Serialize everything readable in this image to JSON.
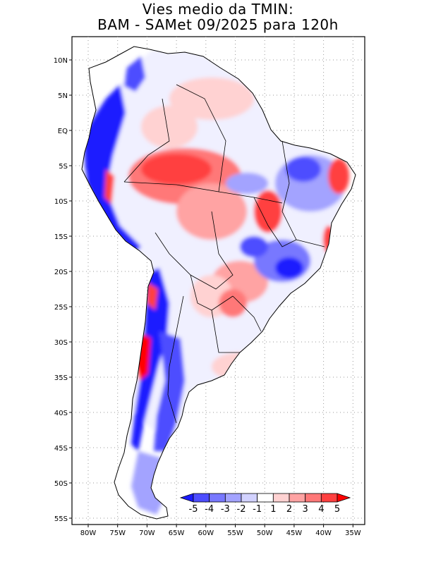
{
  "title": {
    "line1": "Vies medio da TMIN:",
    "line2": "BAM - SAMet 09/2025  para 120h"
  },
  "lat_ticks": [
    "10N",
    "5N",
    "EQ",
    "5S",
    "10S",
    "15S",
    "20S",
    "25S",
    "30S",
    "35S",
    "40S",
    "45S",
    "50S",
    "55S"
  ],
  "lon_ticks": [
    "80W",
    "75W",
    "70W",
    "65W",
    "60W",
    "55W",
    "50W",
    "45W",
    "40W",
    "35W"
  ],
  "colorbar": {
    "labels": [
      "-5",
      "-4",
      "-3",
      "-2",
      "-1",
      "1",
      "2",
      "3",
      "4",
      "5"
    ],
    "colors": [
      "#1a1aff",
      "#4d4dff",
      "#7878ff",
      "#a3a3ff",
      "#d2d2ff",
      "#ffffff",
      "#ffd2d2",
      "#ffa3a3",
      "#ff7878",
      "#ff4040",
      "#ff0000"
    ]
  },
  "colors": {
    "land": "#ffffff",
    "grid": "#9a9a9a",
    "border": "#000000"
  }
}
